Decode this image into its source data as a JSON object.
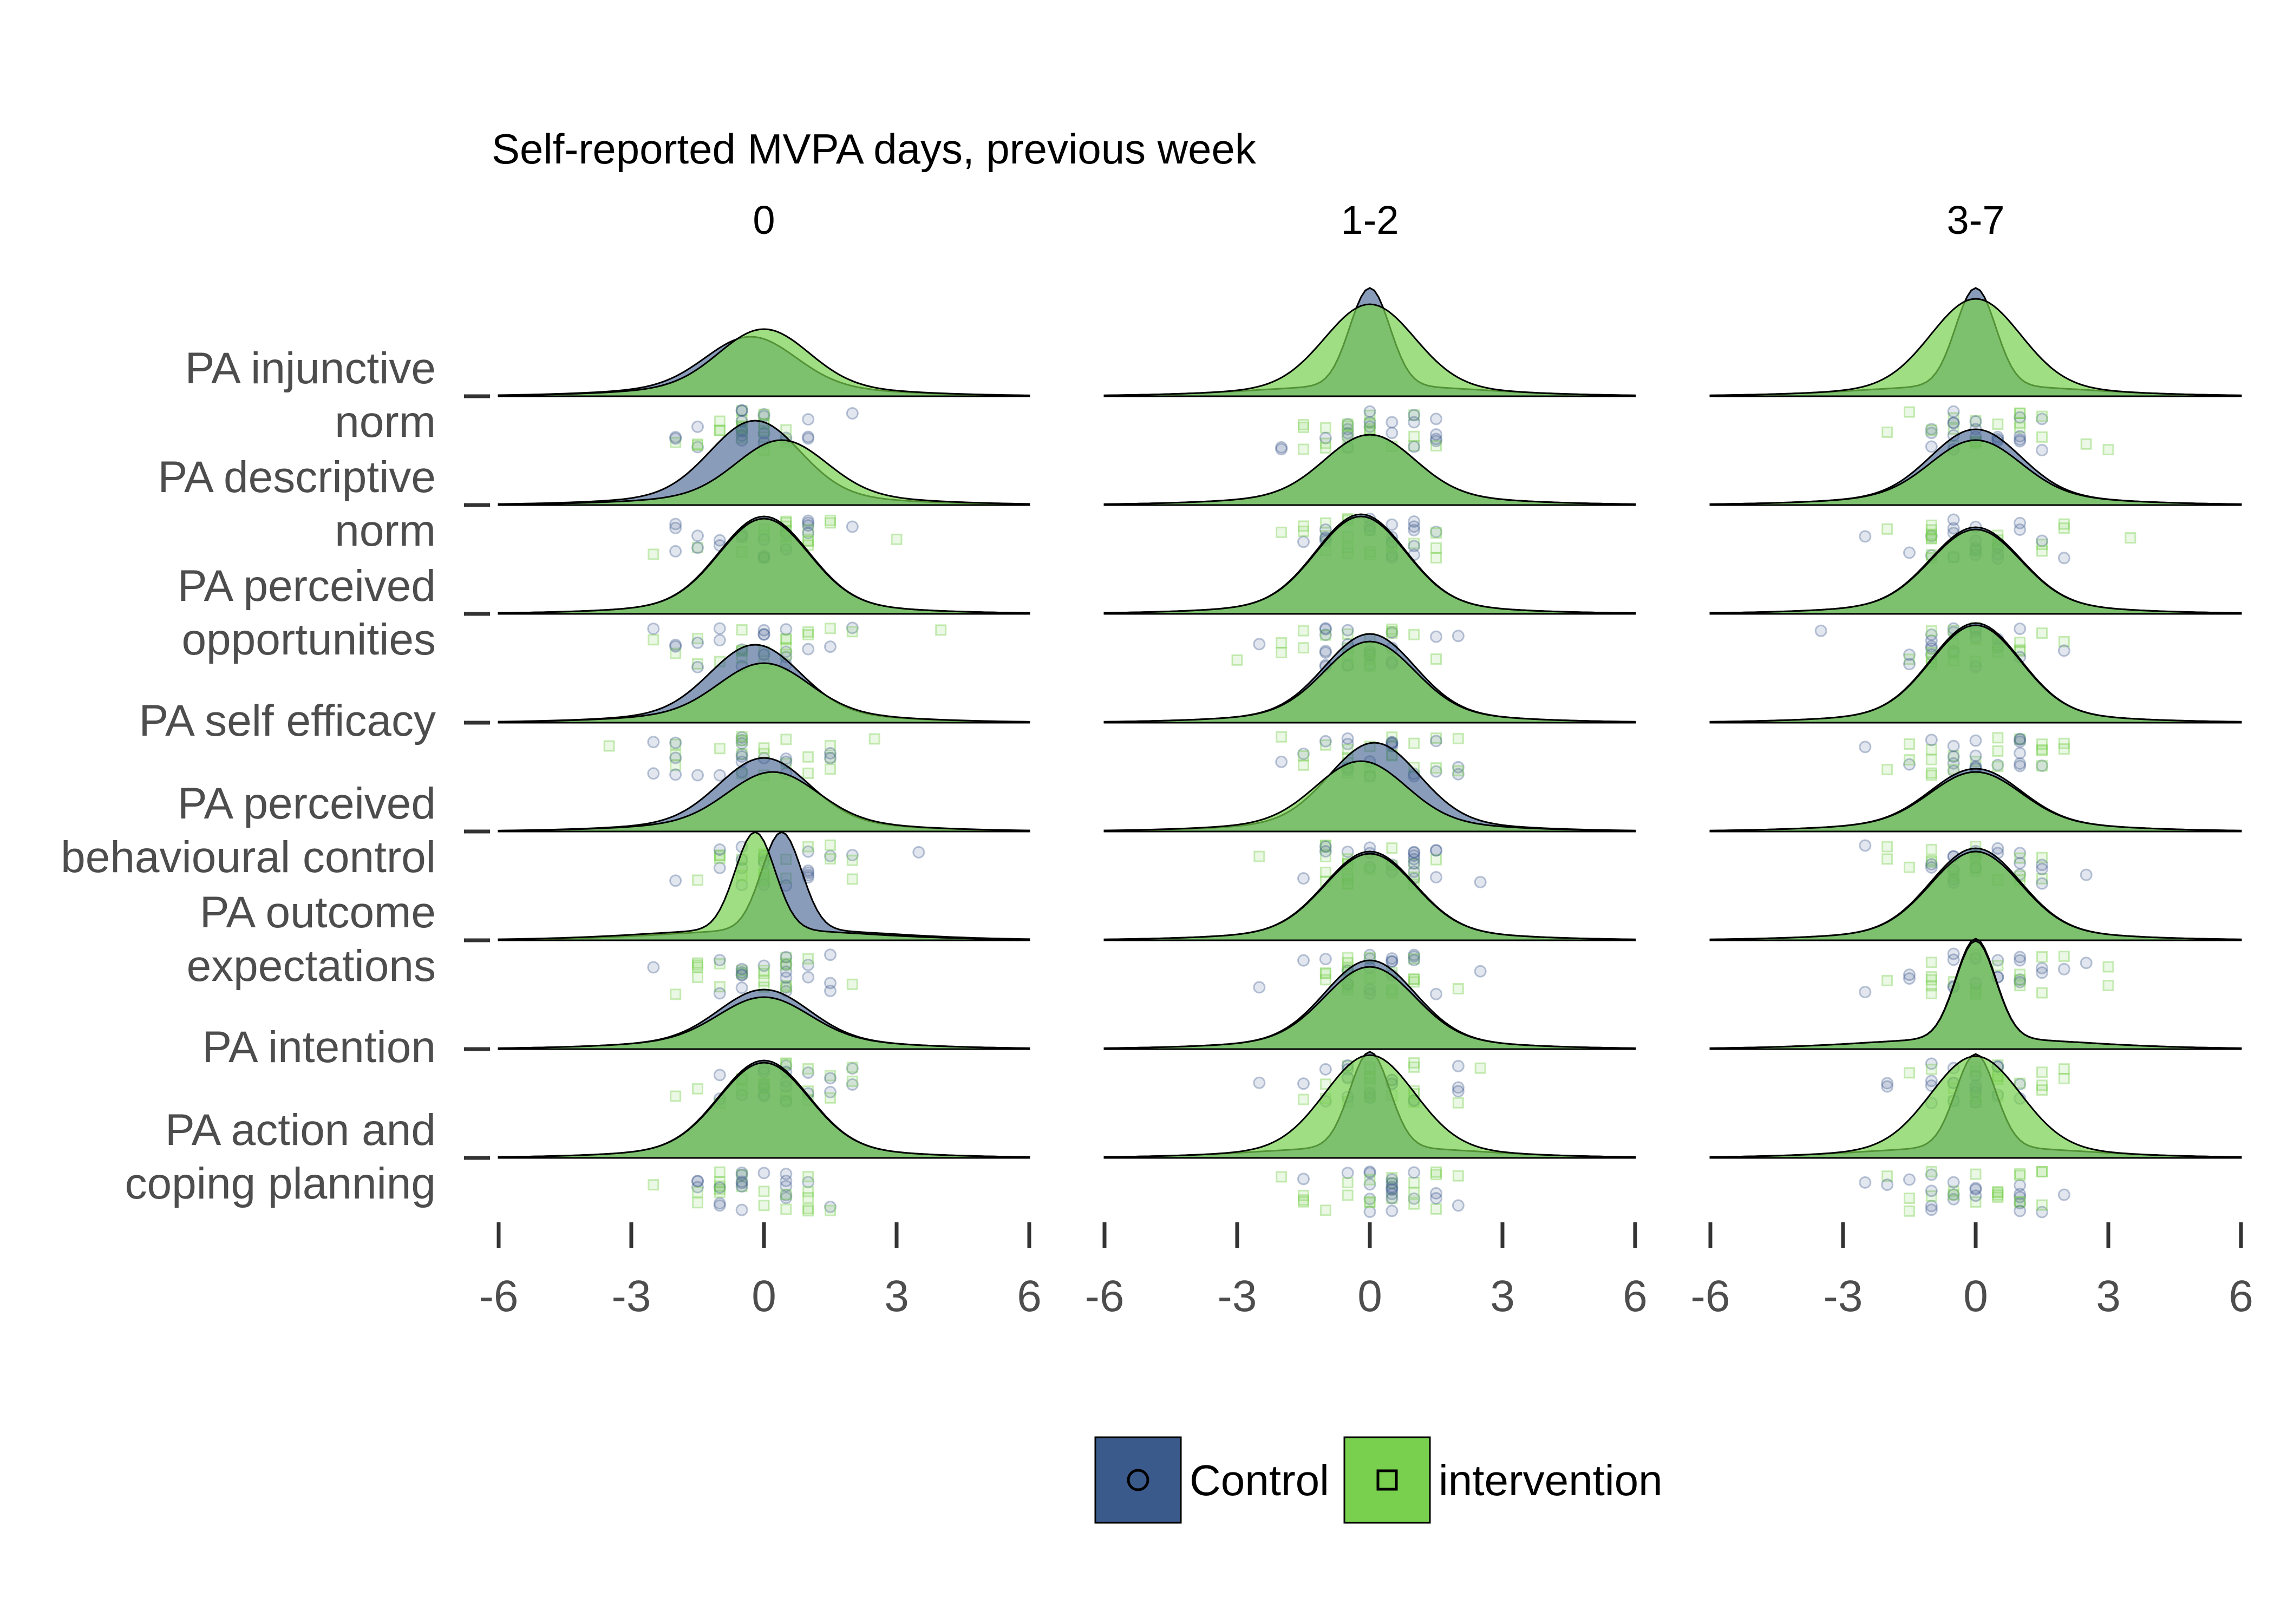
{
  "chart_data": {
    "type": "ridgeline",
    "title": "Self-reported MVPA days, previous week",
    "facets": [
      "0",
      "1-2",
      "3-7"
    ],
    "rows": [
      "PA injunctive norm",
      "PA descriptive norm",
      "PA perceived opportunities",
      "PA self efficacy",
      "PA perceived behavioural control",
      "PA outcome expectations",
      "PA intention",
      "PA action and coping planning"
    ],
    "row_label_lines": [
      [
        "PA injunctive",
        "norm"
      ],
      [
        "PA descriptive",
        "norm"
      ],
      [
        "PA perceived",
        "opportunities"
      ],
      [
        "PA self efficacy"
      ],
      [
        "PA perceived",
        "behavioural control"
      ],
      [
        "PA outcome",
        "expectations"
      ],
      [
        "PA intention"
      ],
      [
        "PA action and",
        "coping planning"
      ]
    ],
    "x_ticks": [
      -6,
      -3,
      0,
      3,
      6
    ],
    "xlim": [
      -6,
      6
    ],
    "series": [
      {
        "name": "Control",
        "color": "#3b5a8c",
        "marker": "circle"
      },
      {
        "name": "intervention",
        "color": "#78d04e",
        "marker": "square"
      }
    ],
    "density_peaks": [
      {
        "row": "PA injunctive norm",
        "facet": "0",
        "Control_center": -0.3,
        "Control_height": 0.45,
        "intervention_center": 0.0,
        "intervention_height": 0.52
      },
      {
        "row": "PA injunctive norm",
        "facet": "1-2",
        "Control_center": 0.0,
        "Control_height": 0.9,
        "intervention_center": 0.0,
        "intervention_height": 0.75
      },
      {
        "row": "PA injunctive norm",
        "facet": "3-7",
        "Control_center": 0.0,
        "Control_height": 0.9,
        "intervention_center": 0.0,
        "intervention_height": 0.8
      },
      {
        "row": "PA descriptive norm",
        "facet": "0",
        "Control_center": -0.2,
        "Control_height": 0.68,
        "intervention_center": 0.4,
        "intervention_height": 0.5
      },
      {
        "row": "PA descriptive norm",
        "facet": "1-2",
        "Control_center": 0.0,
        "Control_height": 0.55,
        "intervention_center": 0.0,
        "intervention_height": 0.55
      },
      {
        "row": "PA descriptive norm",
        "facet": "3-7",
        "Control_center": 0.0,
        "Control_height": 0.6,
        "intervention_center": 0.0,
        "intervention_height": 0.5
      },
      {
        "row": "PA perceived opportunities",
        "facet": "0",
        "Control_center": 0.0,
        "Control_height": 0.8,
        "intervention_center": 0.0,
        "intervention_height": 0.78
      },
      {
        "row": "PA perceived opportunities",
        "facet": "1-2",
        "Control_center": -0.2,
        "Control_height": 0.82,
        "intervention_center": -0.2,
        "intervention_height": 0.8
      },
      {
        "row": "PA perceived opportunities",
        "facet": "3-7",
        "Control_center": 0.0,
        "Control_height": 0.7,
        "intervention_center": 0.0,
        "intervention_height": 0.68
      },
      {
        "row": "PA self efficacy",
        "facet": "0",
        "Control_center": -0.2,
        "Control_height": 0.62,
        "intervention_center": 0.0,
        "intervention_height": 0.45
      },
      {
        "row": "PA self efficacy",
        "facet": "1-2",
        "Control_center": 0.0,
        "Control_height": 0.72,
        "intervention_center": 0.0,
        "intervention_height": 0.65
      },
      {
        "row": "PA self efficacy",
        "facet": "3-7",
        "Control_center": 0.0,
        "Control_height": 0.82,
        "intervention_center": 0.0,
        "intervention_height": 0.8
      },
      {
        "row": "PA perceived behavioural control",
        "facet": "0",
        "Control_center": 0.0,
        "Control_height": 0.58,
        "intervention_center": 0.2,
        "intervention_height": 0.45
      },
      {
        "row": "PA perceived behavioural control",
        "facet": "1-2",
        "Control_center": 0.1,
        "Control_height": 0.72,
        "intervention_center": -0.2,
        "intervention_height": 0.55
      },
      {
        "row": "PA perceived behavioural control",
        "facet": "3-7",
        "Control_center": 0.0,
        "Control_height": 0.48,
        "intervention_center": 0.0,
        "intervention_height": 0.45
      },
      {
        "row": "PA outcome expectations",
        "facet": "0",
        "Control_center": 0.4,
        "Control_height": 0.9,
        "intervention_center": -0.2,
        "intervention_height": 0.9
      },
      {
        "row": "PA outcome expectations",
        "facet": "1-2",
        "Control_center": 0.0,
        "Control_height": 0.72,
        "intervention_center": 0.0,
        "intervention_height": 0.7
      },
      {
        "row": "PA outcome expectations",
        "facet": "3-7",
        "Control_center": 0.0,
        "Control_height": 0.75,
        "intervention_center": 0.0,
        "intervention_height": 0.72
      },
      {
        "row": "PA intention",
        "facet": "0",
        "Control_center": 0.0,
        "Control_height": 0.45,
        "intervention_center": 0.0,
        "intervention_height": 0.38
      },
      {
        "row": "PA intention",
        "facet": "1-2",
        "Control_center": 0.0,
        "Control_height": 0.72,
        "intervention_center": 0.0,
        "intervention_height": 0.66
      },
      {
        "row": "PA intention",
        "facet": "3-7",
        "Control_center": 0.0,
        "Control_height": 0.92,
        "intervention_center": 0.0,
        "intervention_height": 0.9
      },
      {
        "row": "PA action and coping planning",
        "facet": "0",
        "Control_center": 0.0,
        "Control_height": 0.8,
        "intervention_center": 0.0,
        "intervention_height": 0.78
      },
      {
        "row": "PA action and coping planning",
        "facet": "1-2",
        "Control_center": 0.0,
        "Control_height": 0.88,
        "intervention_center": 0.0,
        "intervention_height": 0.85
      },
      {
        "row": "PA action and coping planning",
        "facet": "3-7",
        "Control_center": 0.0,
        "Control_height": 0.86,
        "intervention_center": 0.0,
        "intervention_height": 0.84
      }
    ],
    "legend_position": "bottom",
    "grid": false
  }
}
